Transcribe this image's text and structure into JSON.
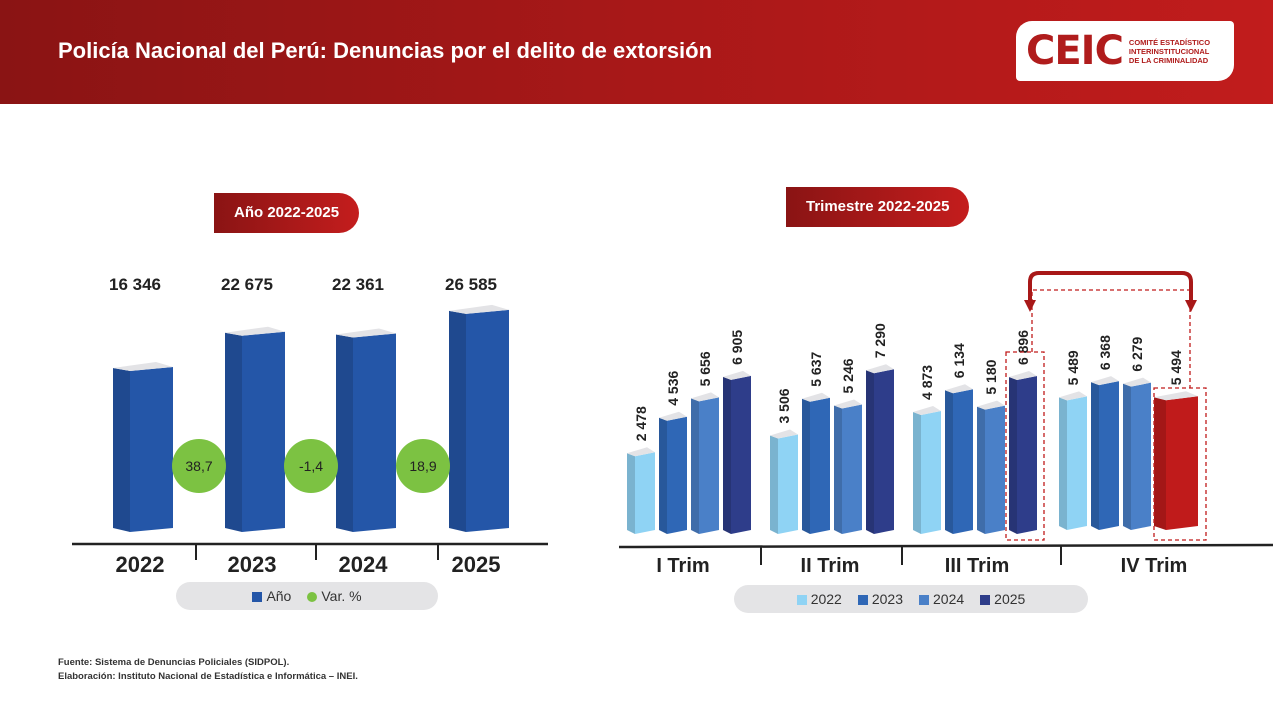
{
  "header": {
    "title": "Policía Nacional del Perú: Denuncias por el delito de extorsión",
    "logo": {
      "mark": "CEIC",
      "line1": "COMITÉ ESTADÍSTICO",
      "line2": "INTERINSTITUCIONAL",
      "line3": "DE LA CRIMINALIDAD"
    }
  },
  "footer": {
    "source": "Fuente: Sistema de Denuncias Policiales (SIDPOL).",
    "credit": "Elaboración: Instituto Nacional de Estadística e Informática – INEI."
  },
  "chart_data": [
    {
      "type": "bar",
      "title": "Año 2022-2025",
      "categories": [
        "2022",
        "2023",
        "2024",
        "2025"
      ],
      "series": [
        {
          "name": "Año",
          "values": [
            16346,
            22675,
            22361,
            26585
          ]
        }
      ],
      "data_labels": [
        "16 346",
        "22 675",
        "22 361",
        "26 585"
      ],
      "variation": {
        "name": "Var. %",
        "values": [
          "38,7",
          "-1,4",
          "18,9"
        ]
      },
      "colors": {
        "bar": "#2456a8",
        "var": "#7cc242"
      },
      "legend": "bottom"
    },
    {
      "type": "bar",
      "title": "Trimestre 2022-2025",
      "categories": [
        "I Trim",
        "II Trim",
        "III Trim",
        "IV Trim"
      ],
      "series": [
        {
          "name": "2022",
          "values": [
            2478,
            3506,
            4873,
            5489
          ],
          "labels": [
            "2 478",
            "3 506",
            "4 873",
            "5 489"
          ],
          "color": "#8fd3f4"
        },
        {
          "name": "2023",
          "values": [
            4536,
            5637,
            6134,
            6368
          ],
          "labels": [
            "4 536",
            "5 637",
            "6 134",
            "6 368"
          ],
          "color": "#2f67b6"
        },
        {
          "name": "2024",
          "values": [
            5656,
            5246,
            5180,
            6279
          ],
          "labels": [
            "5 656",
            "5 246",
            "5 180",
            "6 279"
          ],
          "color": "#4a80c8"
        },
        {
          "name": "2025",
          "values": [
            6905,
            7290,
            6896,
            5494
          ],
          "labels": [
            "6 905",
            "7 290",
            "6 896",
            "5 494"
          ],
          "color": "#2e3d8a"
        }
      ],
      "highlight_color": "#c01b1b",
      "legend": "bottom"
    }
  ]
}
